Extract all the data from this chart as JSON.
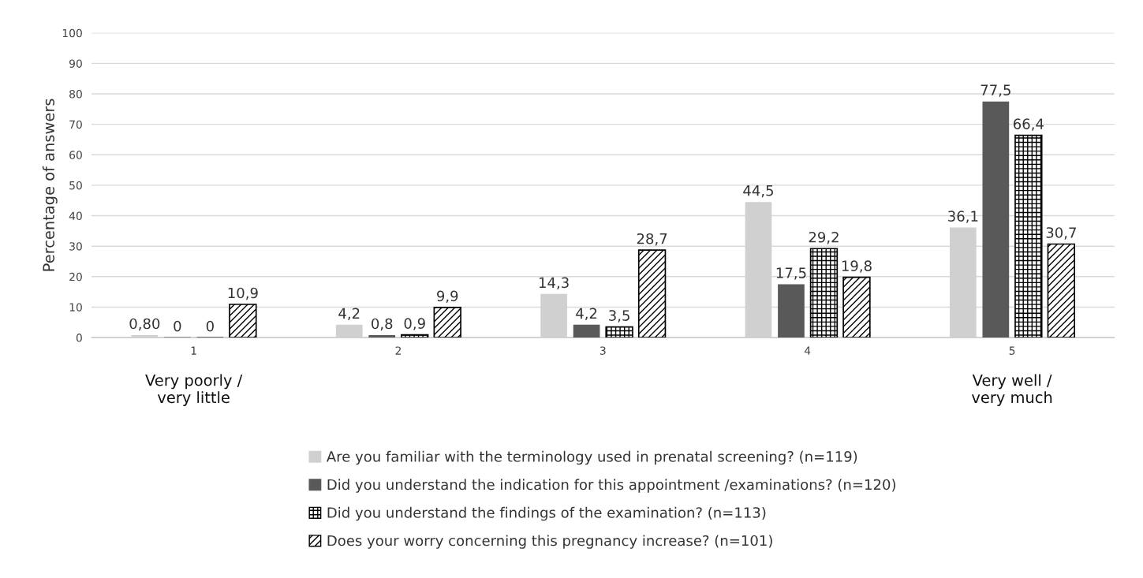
{
  "chart_data": {
    "type": "bar",
    "ylabel": "Percentage of answers",
    "categories": [
      "1",
      "2",
      "3",
      "4",
      "5"
    ],
    "series": [
      {
        "name": "Are you familiar with the terminology used in prenatal screening? (n=119)",
        "color": "#d0d0d0",
        "values": [
          0.8,
          4.2,
          14.3,
          44.5,
          36.1
        ],
        "value_labels": [
          "0,80",
          "4,2",
          "14,3",
          "44,5",
          "36,1"
        ]
      },
      {
        "name": "Did you understand the indication for this appointment /examinations? (n=120)",
        "color": "#595959",
        "values": [
          0,
          0.8,
          4.2,
          17.5,
          77.5
        ],
        "value_labels": [
          "0",
          "0,8",
          "4,2",
          "17,5",
          "77,5"
        ]
      },
      {
        "name": "Did you understand the findings of the examination? (n=113)",
        "color": "#000000",
        "values": [
          0,
          0.9,
          3.5,
          29.2,
          66.4
        ],
        "value_labels": [
          "0",
          "0,9",
          "3,5",
          "29,2",
          "66,4"
        ]
      },
      {
        "name": "Does your worry concerning this pregnancy increase? (n=101)",
        "color": "#000000",
        "values": [
          10.9,
          9.9,
          28.7,
          19.8,
          30.7
        ],
        "value_labels": [
          "10,9",
          "9,9",
          "28,7",
          "19,8",
          "30,7"
        ]
      }
    ],
    "ylim": [
      0,
      100
    ],
    "yticks": [
      0,
      10,
      20,
      30,
      40,
      50,
      60,
      70,
      80,
      90,
      100
    ],
    "grid": "y",
    "legend": "bottom",
    "annotations": [
      "Very poorly /\nvery little",
      "Very well /\nvery much"
    ]
  }
}
